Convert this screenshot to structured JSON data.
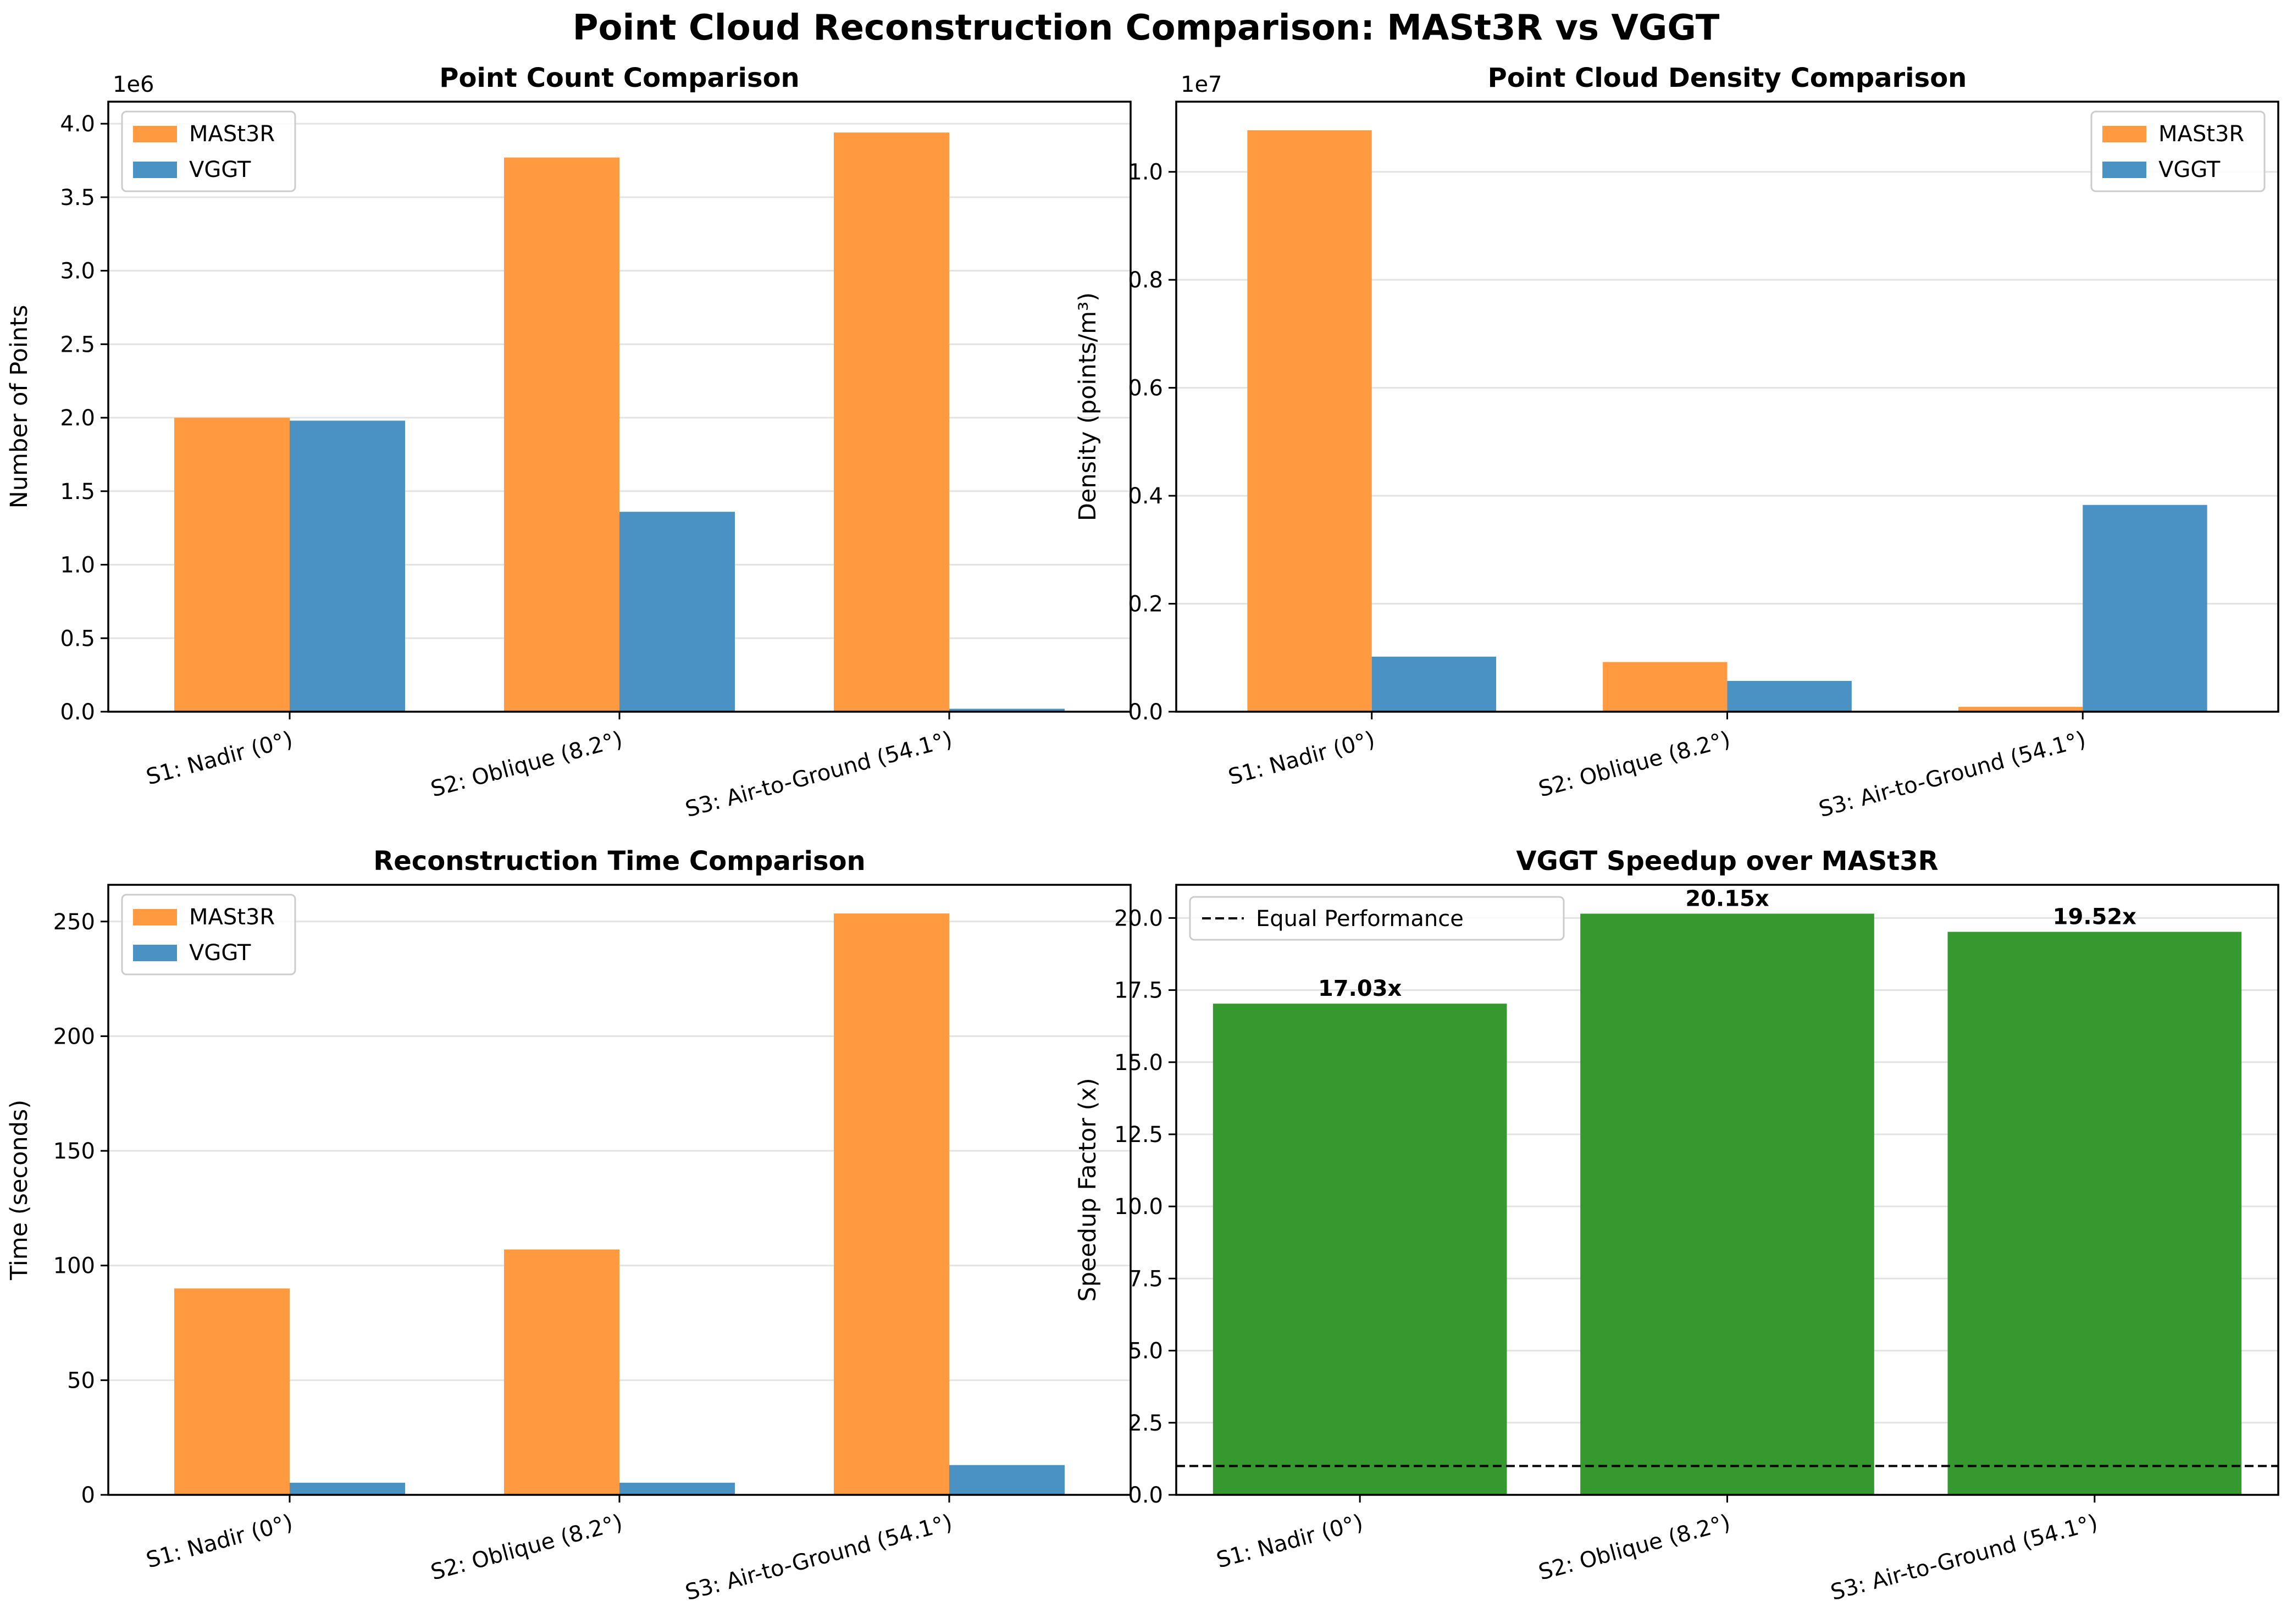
{
  "suptitle": "Point Cloud Reconstruction Comparison: MASt3R vs VGGT",
  "colors": {
    "mast3r": "#ff9a40",
    "vggt": "#4a92c4",
    "speedup": "#35992f"
  },
  "chart_data": [
    {
      "type": "bar",
      "title": "Point Count Comparison",
      "ylabel": "Number of Points",
      "offset_text": "1e6",
      "ylim": [
        0,
        4.15
      ],
      "yticks": [
        0.0,
        0.5,
        1.0,
        1.5,
        2.0,
        2.5,
        3.0,
        3.5,
        4.0
      ],
      "ytick_labels": [
        "0.0",
        "0.5",
        "1.0",
        "1.5",
        "2.0",
        "2.5",
        "3.0",
        "3.5",
        "4.0"
      ],
      "categories": [
        "S1: Nadir (0°)",
        "S2: Oblique (8.2°)",
        "S3: Air-to-Ground (54.1°)"
      ],
      "series": [
        {
          "name": "MASt3R",
          "values": [
            2.0,
            3.77,
            3.94
          ]
        },
        {
          "name": "VGGT",
          "values": [
            1.98,
            1.36,
            0.02
          ]
        }
      ],
      "legend": "upper left",
      "grid": "y"
    },
    {
      "type": "bar",
      "title": "Point Cloud Density Comparison",
      "ylabel": "Density (points/m³)",
      "offset_text": "1e7",
      "ylim": [
        0,
        1.13
      ],
      "yticks": [
        0.0,
        0.2,
        0.4,
        0.6,
        0.8,
        1.0
      ],
      "ytick_labels": [
        "0.0",
        "0.2",
        "0.4",
        "0.6",
        "0.8",
        "1.0"
      ],
      "categories": [
        "S1: Nadir (0°)",
        "S2: Oblique (8.2°)",
        "S3: Air-to-Ground (54.1°)"
      ],
      "series": [
        {
          "name": "MASt3R",
          "values": [
            1.077,
            0.092,
            0.009
          ]
        },
        {
          "name": "VGGT",
          "values": [
            0.102,
            0.057,
            0.383
          ]
        }
      ],
      "legend": "upper right",
      "grid": "y"
    },
    {
      "type": "bar",
      "title": "Reconstruction Time Comparison",
      "ylabel": "Time (seconds)",
      "offset_text": "",
      "ylim": [
        0,
        266
      ],
      "yticks": [
        0,
        50,
        100,
        150,
        200,
        250
      ],
      "ytick_labels": [
        "0",
        "50",
        "100",
        "150",
        "200",
        "250"
      ],
      "categories": [
        "S1: Nadir (0°)",
        "S2: Oblique (8.2°)",
        "S3: Air-to-Ground (54.1°)"
      ],
      "series": [
        {
          "name": "MASt3R",
          "values": [
            90.0,
            107.0,
            253.5
          ]
        },
        {
          "name": "VGGT",
          "values": [
            5.3,
            5.3,
            13.0
          ]
        }
      ],
      "legend": "upper left",
      "grid": "y"
    },
    {
      "type": "bar",
      "title": "VGGT Speedup over MASt3R",
      "ylabel": "Speedup Factor (x)",
      "offset_text": "",
      "ylim": [
        0,
        21.15
      ],
      "yticks": [
        0.0,
        2.5,
        5.0,
        7.5,
        10.0,
        12.5,
        15.0,
        17.5,
        20.0
      ],
      "ytick_labels": [
        "0.0",
        "2.5",
        "5.0",
        "7.5",
        "10.0",
        "12.5",
        "15.0",
        "17.5",
        "20.0"
      ],
      "categories": [
        "S1: Nadir (0°)",
        "S2: Oblique (8.2°)",
        "S3: Air-to-Ground (54.1°)"
      ],
      "series": [
        {
          "values": [
            17.03,
            20.15,
            19.52
          ]
        }
      ],
      "bar_labels": [
        "17.03x",
        "20.15x",
        "19.52x"
      ],
      "reference_line": {
        "y": 1.0,
        "label": "Equal Performance",
        "style": "dashed"
      },
      "legend": "upper left",
      "grid": "y"
    }
  ]
}
